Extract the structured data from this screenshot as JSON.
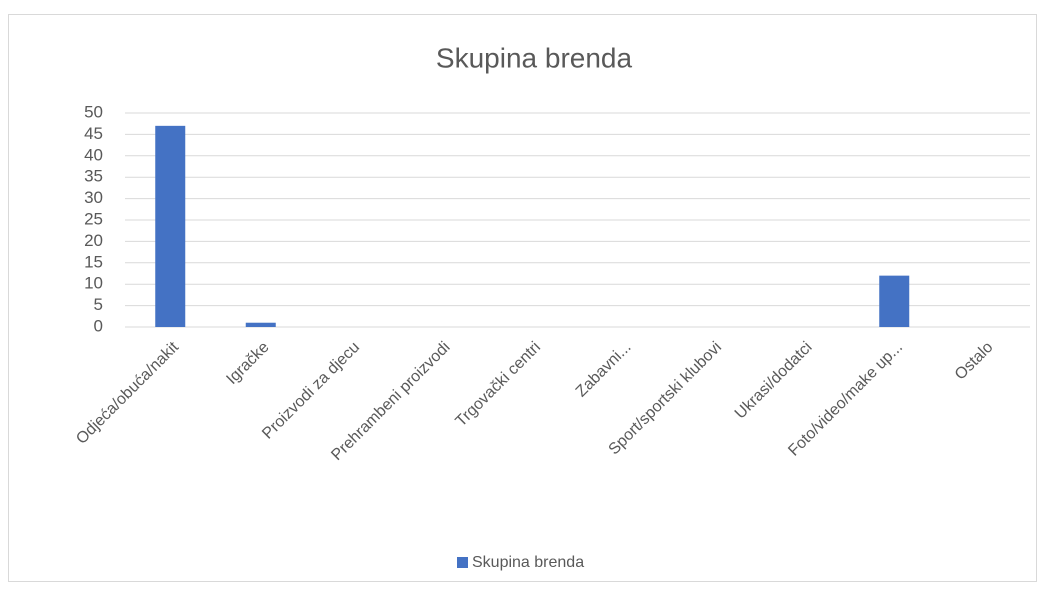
{
  "chart_data": {
    "type": "bar",
    "title": "Skupina brenda",
    "categories": [
      "Odjeća/obuća/nakit",
      "Igračke",
      "Proizvodi za djecu",
      "Prehrambeni proizvodi",
      "Trgovački centri",
      "Zabavni...",
      "Sport/sportski klubovi",
      "Ukrasi/dodatci",
      "Foto/video/make up...",
      "Ostalo"
    ],
    "series": [
      {
        "name": "Skupina brenda",
        "color": "#4472c4",
        "values": [
          47,
          1,
          0,
          0,
          0,
          0,
          0,
          0,
          12,
          0
        ]
      }
    ],
    "ylim": [
      0,
      50
    ],
    "yticks": [
      0,
      5,
      10,
      15,
      20,
      25,
      30,
      35,
      40,
      45,
      50
    ],
    "grid": true,
    "legend": "bottom"
  }
}
